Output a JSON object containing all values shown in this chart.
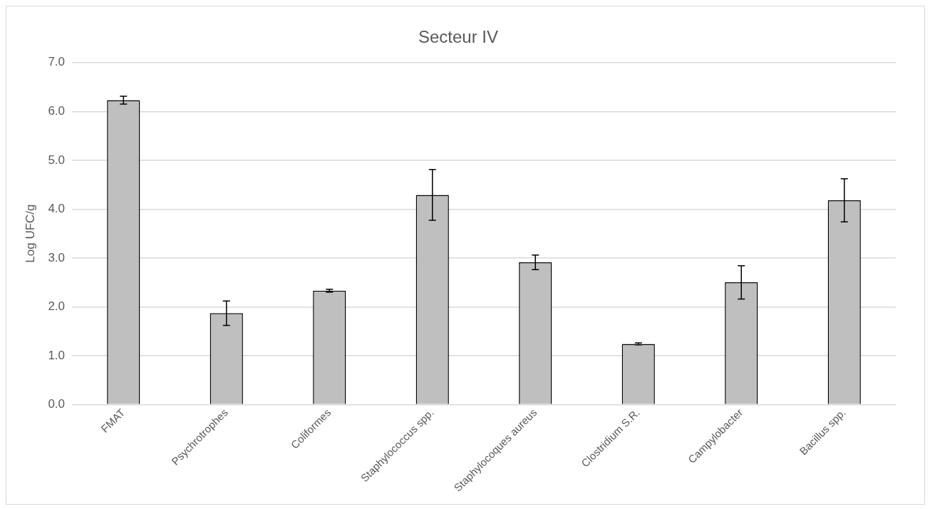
{
  "chart_data": {
    "type": "bar",
    "title": "Secteur IV",
    "ylabel": "Log UFC/g",
    "categories": [
      "FMAT",
      "Psychrotrophes",
      "Coliformes",
      "Staphylococcus spp.",
      "Staphylocoques aureus",
      "Clostridium S.R.",
      "Campylobacter",
      "Bacillus spp."
    ],
    "values": [
      6.23,
      1.87,
      2.33,
      4.29,
      2.91,
      1.24,
      2.5,
      4.18
    ],
    "errors": [
      0.08,
      0.25,
      0.03,
      0.52,
      0.15,
      0.02,
      0.34,
      0.44
    ],
    "color": "#bfbfbf",
    "ylim": [
      0,
      7
    ],
    "yticks": [
      {
        "value": 0,
        "label": "0.0"
      },
      {
        "value": 1,
        "label": "1.0"
      },
      {
        "value": 2,
        "label": "2.0"
      },
      {
        "value": 3,
        "label": "3.0"
      },
      {
        "value": 4,
        "label": "4.0"
      },
      {
        "value": 5,
        "label": "5.0"
      },
      {
        "value": 6,
        "label": "6.0"
      },
      {
        "value": 7,
        "label": "7.0"
      }
    ],
    "grid": "y"
  }
}
